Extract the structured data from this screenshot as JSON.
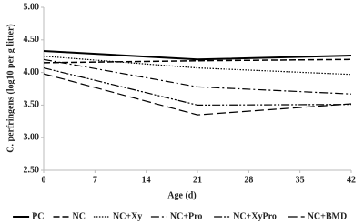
{
  "chart_data": {
    "type": "line",
    "x_label": "Age (d)",
    "y_label": "C. perfringens (log10 per g litter)",
    "x": [
      0,
      21,
      42
    ],
    "series": [
      {
        "name": "PC",
        "color": "#000000",
        "dash": "none",
        "width": 2,
        "values": [
          4.33,
          4.2,
          4.26
        ]
      },
      {
        "name": "NC",
        "color": "#000000",
        "dash": "7,3",
        "width": 1.5,
        "values": [
          4.15,
          4.18,
          4.2
        ]
      },
      {
        "name": "NC+Xy",
        "color": "#000000",
        "dash": "1.5,1.5",
        "width": 1.2,
        "values": [
          4.25,
          4.07,
          3.97
        ]
      },
      {
        "name": "NC+Pro",
        "color": "#000000",
        "dash": "9,3,2,3",
        "width": 1.2,
        "values": [
          4.2,
          3.78,
          3.67
        ]
      },
      {
        "name": "NC+XyPro",
        "color": "#000000",
        "dash": "9,2,2,2,2,2",
        "width": 1.2,
        "values": [
          4.07,
          3.5,
          3.51
        ]
      },
      {
        "name": "NC+BMD",
        "color": "#000000",
        "dash": "10,4",
        "width": 1.2,
        "values": [
          3.98,
          3.35,
          3.52
        ]
      }
    ],
    "xlim": [
      0,
      42
    ],
    "xticks": [
      0,
      7,
      14,
      21,
      28,
      35,
      42
    ],
    "ylim": [
      2.5,
      5.0
    ],
    "yticks": [
      {
        "value": 2.5,
        "label": "2.50"
      },
      {
        "value": 3.0,
        "label": "3.00"
      },
      {
        "value": 3.5,
        "label": "3.50"
      },
      {
        "value": 4.0,
        "label": "4.00"
      },
      {
        "value": 4.5,
        "label": "4.50"
      },
      {
        "value": 5.0,
        "label": "5.00"
      }
    ],
    "legend": "bottom"
  }
}
